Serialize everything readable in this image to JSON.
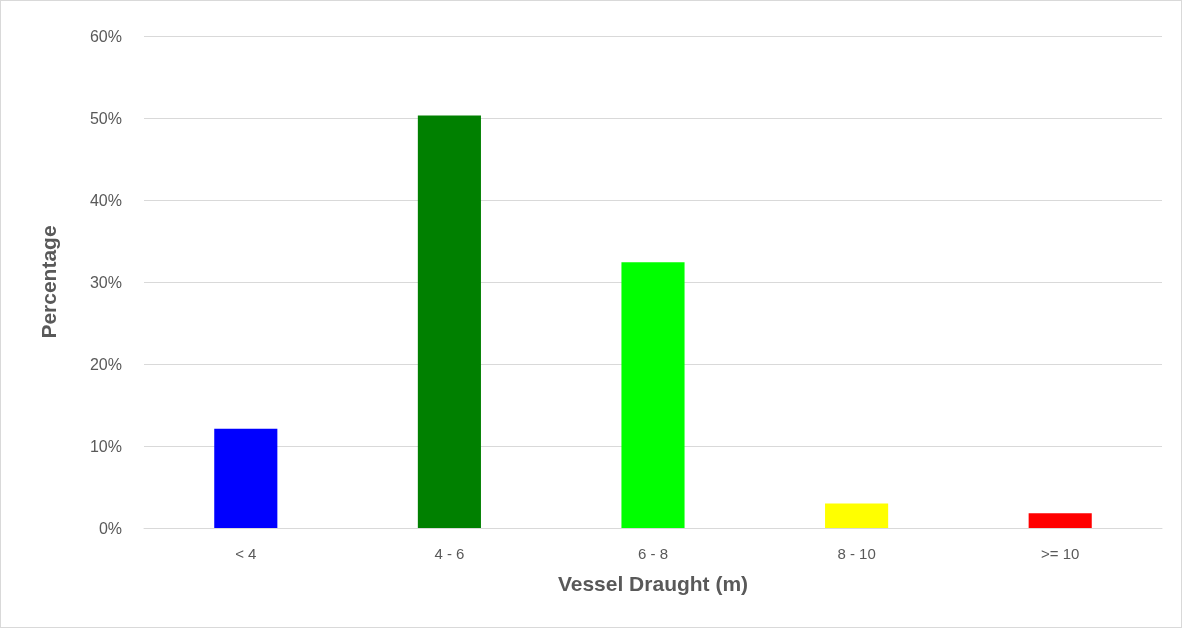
{
  "chart_data": {
    "type": "bar",
    "xlabel": "Vessel Draught (m)",
    "ylabel": "Percentage",
    "categories": [
      "< 4",
      "4 - 6",
      "6 - 8",
      "8 - 10",
      ">= 10"
    ],
    "values": [
      12.1,
      50.3,
      32.4,
      3.0,
      1.8
    ],
    "colors": [
      "#0000ff",
      "#008000",
      "#00ff00",
      "#ffff00",
      "#ff0000"
    ],
    "ylim": [
      0,
      60
    ],
    "yticks": [
      {
        "value": 0,
        "label": "0%"
      },
      {
        "value": 10,
        "label": "10%"
      },
      {
        "value": 20,
        "label": "20%"
      },
      {
        "value": 30,
        "label": "30%"
      },
      {
        "value": 40,
        "label": "40%"
      },
      {
        "value": 50,
        "label": "50%"
      },
      {
        "value": 60,
        "label": "60%"
      }
    ],
    "grid": "y"
  }
}
